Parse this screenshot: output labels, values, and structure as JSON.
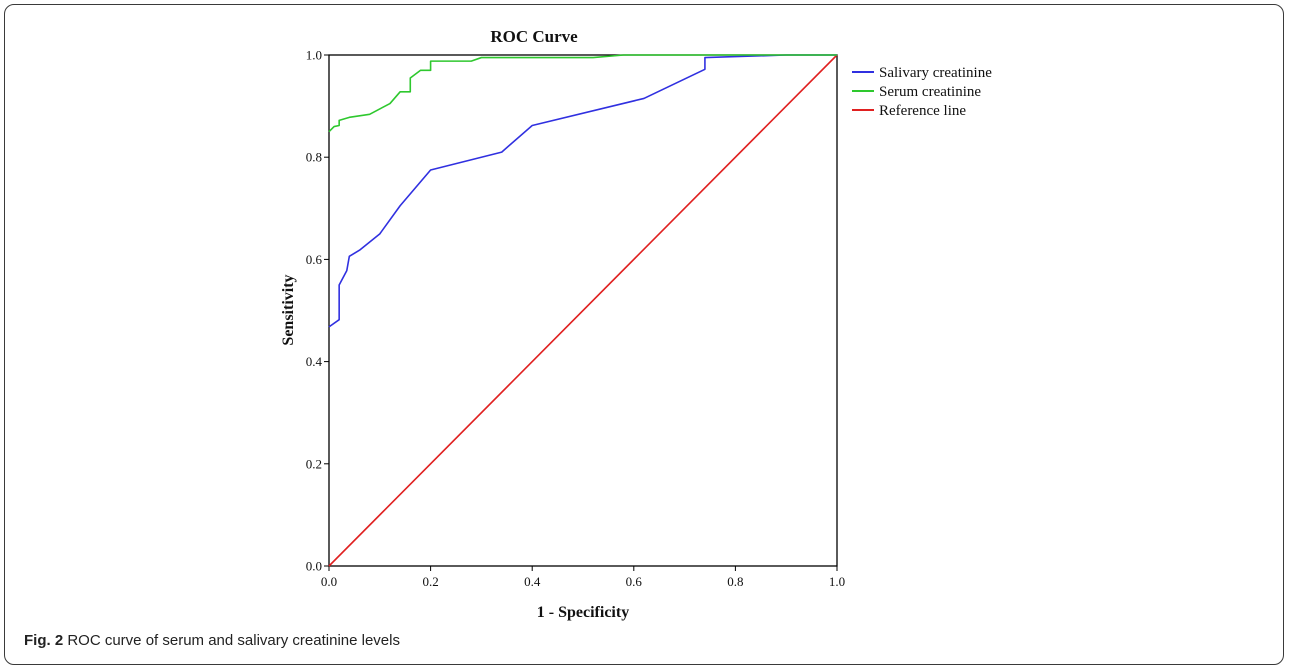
{
  "caption": {
    "label": "Fig. 2",
    "text": "ROC curve of serum and salivary creatinine levels"
  },
  "chart_data": {
    "type": "line",
    "title": "ROC Curve",
    "xlabel": "1 - Specificity",
    "ylabel": "Sensitivity",
    "xlim": [
      0,
      1
    ],
    "ylim": [
      0,
      1
    ],
    "xticks": [
      "0.0",
      "0.2",
      "0.4",
      "0.6",
      "0.8",
      "1.0"
    ],
    "yticks": [
      "0.0",
      "0.2",
      "0.4",
      "0.6",
      "0.8",
      "1.0"
    ],
    "grid": false,
    "legend_position": "right",
    "series": [
      {
        "name": "Salivary creatinine",
        "color": "#3030e0",
        "points": [
          [
            0,
            0.468
          ],
          [
            0.02,
            0.482
          ],
          [
            0.02,
            0.55
          ],
          [
            0.035,
            0.578
          ],
          [
            0.04,
            0.606
          ],
          [
            0.06,
            0.618
          ],
          [
            0.1,
            0.65
          ],
          [
            0.14,
            0.705
          ],
          [
            0.2,
            0.775
          ],
          [
            0.34,
            0.81
          ],
          [
            0.4,
            0.862
          ],
          [
            0.62,
            0.915
          ],
          [
            0.74,
            0.972
          ],
          [
            0.74,
            0.995
          ],
          [
            0.9,
            1.0
          ],
          [
            1.0,
            1.0
          ]
        ]
      },
      {
        "name": "Serum creatinine",
        "color": "#2ec82e",
        "points": [
          [
            0,
            0.85
          ],
          [
            0.01,
            0.86
          ],
          [
            0.02,
            0.862
          ],
          [
            0.02,
            0.872
          ],
          [
            0.04,
            0.878
          ],
          [
            0.08,
            0.884
          ],
          [
            0.12,
            0.905
          ],
          [
            0.14,
            0.928
          ],
          [
            0.16,
            0.928
          ],
          [
            0.16,
            0.955
          ],
          [
            0.18,
            0.97
          ],
          [
            0.2,
            0.97
          ],
          [
            0.2,
            0.988
          ],
          [
            0.28,
            0.988
          ],
          [
            0.3,
            0.995
          ],
          [
            0.52,
            0.995
          ],
          [
            0.58,
            1.0
          ],
          [
            1.0,
            1.0
          ]
        ]
      },
      {
        "name": "Reference line",
        "color": "#e02020",
        "points": [
          [
            0,
            0
          ],
          [
            1,
            1
          ]
        ]
      }
    ]
  }
}
